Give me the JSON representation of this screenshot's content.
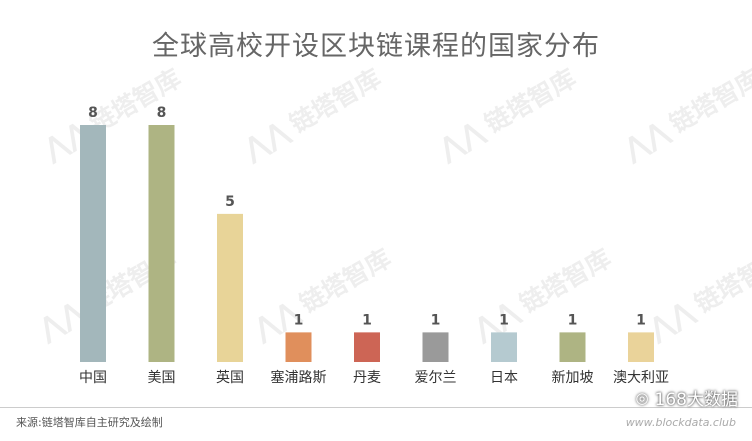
{
  "chart_data": {
    "type": "bar",
    "title": "全球高校开设区块链课程的国家分布",
    "categories": [
      "中国",
      "美国",
      "英国",
      "塞浦路斯",
      "丹麦",
      "爱尔兰",
      "日本",
      "新加坡",
      "澳大利亚"
    ],
    "values": [
      8,
      8,
      5,
      1,
      1,
      1,
      1,
      1,
      1
    ],
    "colors": [
      "#a3b7bb",
      "#aeb483",
      "#e8d498",
      "#e08f5c",
      "#cd6555",
      "#9a9a9a",
      "#b5cad0",
      "#aeb483",
      "#ead39a"
    ],
    "ylim": [
      0,
      8
    ],
    "grid": false,
    "legend": "none"
  },
  "source": "来源:链塔智库自主研究及绘制",
  "watermark_text": "链塔智库",
  "badge": {
    "icon": "wechat-bubble-icon",
    "text": "168大数据",
    "url": "www.blockdata.club"
  }
}
